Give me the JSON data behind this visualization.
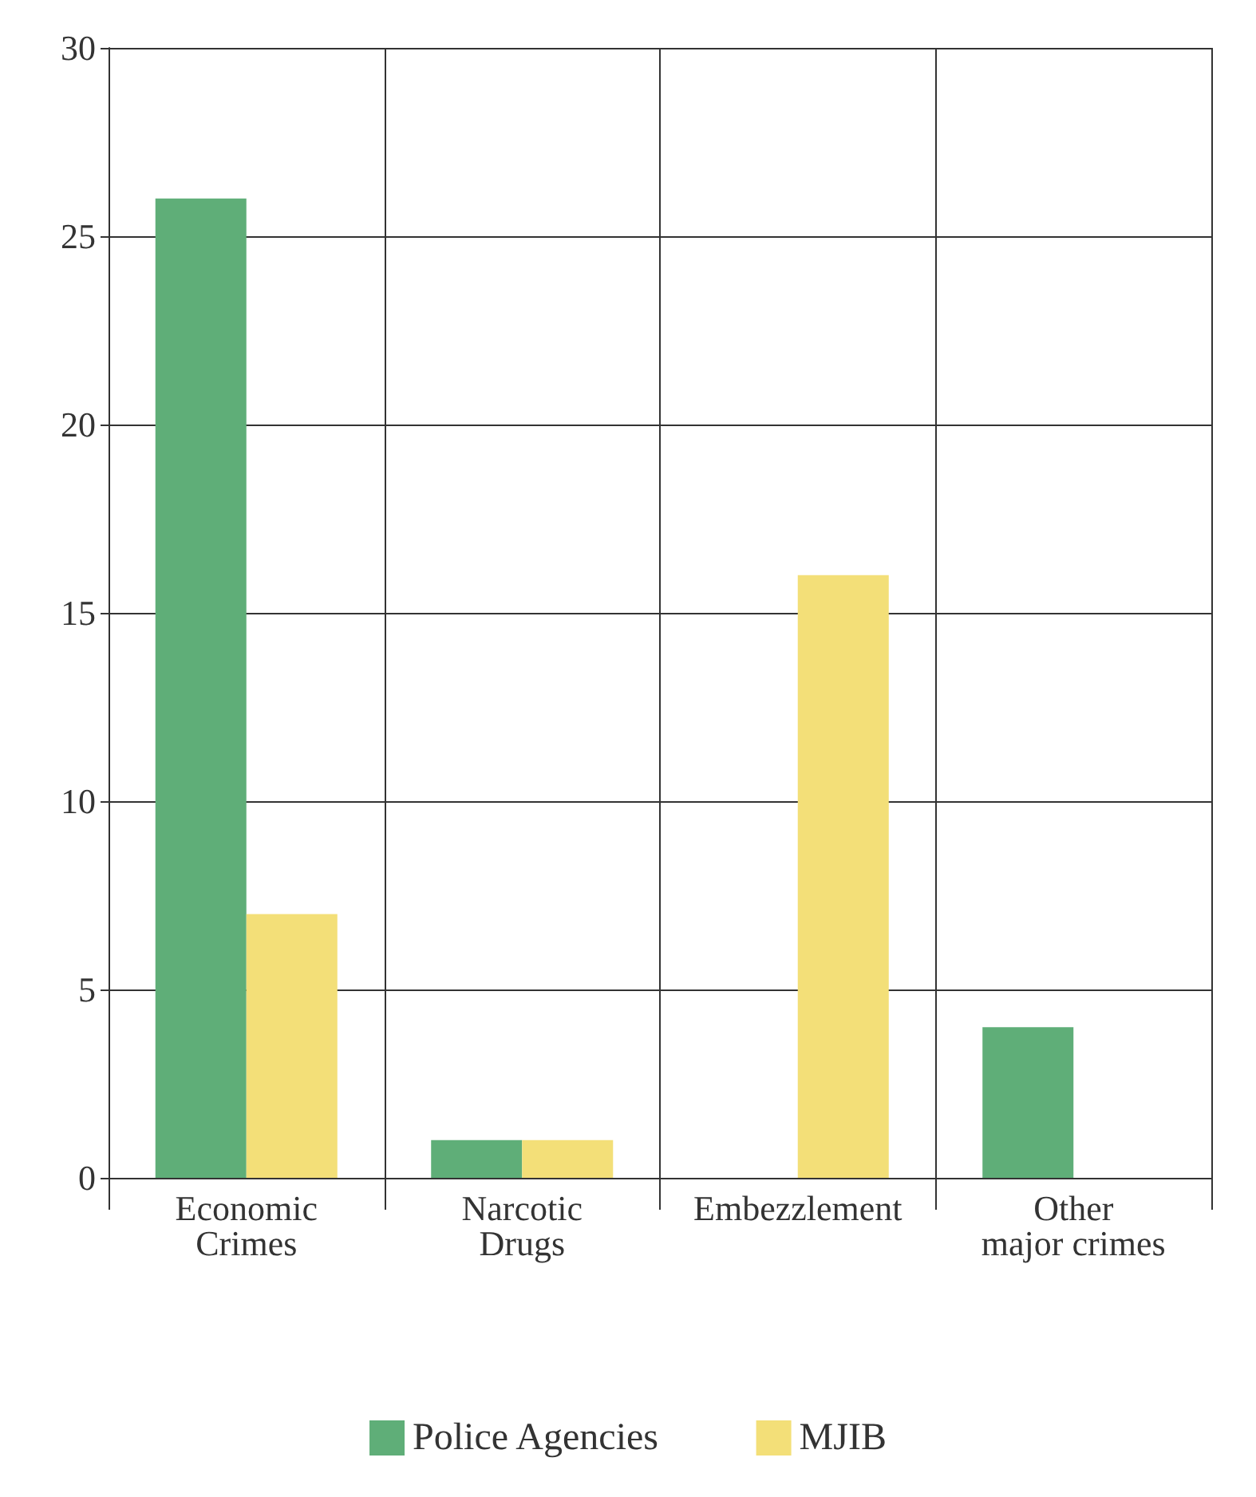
{
  "chart_data": {
    "type": "bar",
    "categories": [
      "Economic\nCrimes",
      "Narcotic\nDrugs",
      "Embezzlement",
      "Other\nmajor crimes"
    ],
    "series": [
      {
        "name": "Police Agencies",
        "color": "#5fae78",
        "values": [
          26,
          1,
          0,
          4
        ]
      },
      {
        "name": "MJIB",
        "color": "#f3df78",
        "values": [
          7,
          1,
          16,
          0
        ]
      }
    ],
    "ylim": [
      0,
      30
    ],
    "yticks": [
      0,
      5,
      10,
      15,
      20,
      25,
      30
    ],
    "grid": true,
    "legend": "bottom"
  }
}
